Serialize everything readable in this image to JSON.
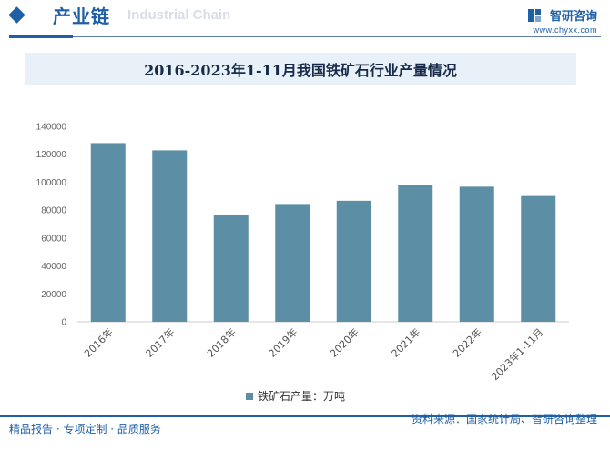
{
  "header": {
    "section_title": "产业链",
    "section_subtitle": "Industrial Chain",
    "brand_name": "智研咨询",
    "brand_url": "www.chyxx.com"
  },
  "colors": {
    "accent": "#1f5fa6",
    "bar": "#5c8fa6"
  },
  "chart_data": {
    "type": "bar",
    "title": "2016-2023年1-11月我国铁矿石行业产量情况",
    "categories": [
      "2016年",
      "2017年",
      "2018年",
      "2019年",
      "2020年",
      "2021年",
      "2022年",
      "2023年1-11月"
    ],
    "series": [
      {
        "name": "铁矿石产量：万吨",
        "values": [
          128000,
          122800,
          76300,
          84400,
          86700,
          98100,
          96800,
          90100
        ]
      }
    ],
    "yticks": [
      "0",
      "20000",
      "40000",
      "60000",
      "80000",
      "100000",
      "120000",
      "140000"
    ],
    "ylim": [
      0,
      140000
    ],
    "grid": false,
    "legend_position": "bottom-center"
  },
  "footer": {
    "left": "精品报告 · 专项定制 · 品质服务",
    "right": "资料来源：国家统计局、智研咨询整理"
  }
}
